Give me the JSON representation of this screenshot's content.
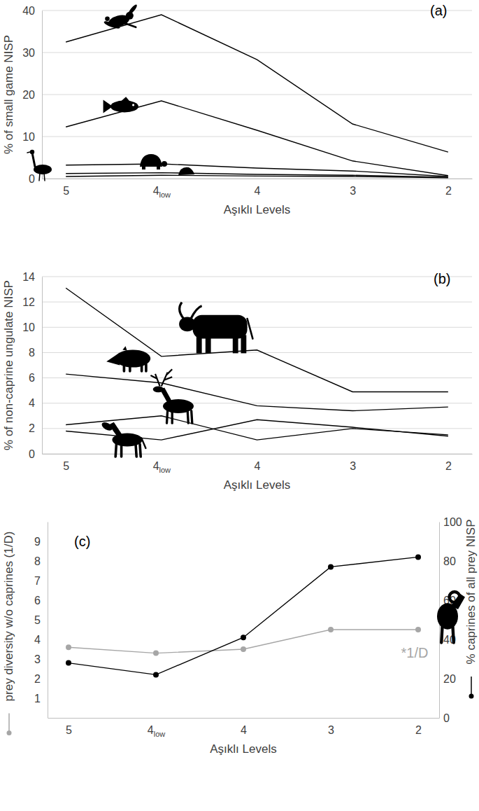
{
  "chart_data": [
    {
      "type": "line",
      "panel_label": "(a)",
      "x_label": "Aşıklı Levels",
      "y_label": "% of small game NISP",
      "categories": [
        "5",
        "4low",
        "4",
        "3",
        "2"
      ],
      "ylim": [
        0,
        40
      ],
      "yticks": [
        0,
        10,
        20,
        30,
        40
      ],
      "grid": true,
      "series": [
        {
          "color": "#000000",
          "values": [
            32.5,
            39,
            28.3,
            13,
            6.3
          ]
        },
        {
          "color": "#000000",
          "values": [
            12.3,
            18.5,
            11.5,
            4.2,
            0.7
          ]
        },
        {
          "color": "#000000",
          "values": [
            3.2,
            3.5,
            2.5,
            1.8,
            0.5
          ]
        },
        {
          "color": "#000000",
          "values": [
            1.2,
            1.4,
            1.0,
            0.8,
            0.3
          ]
        },
        {
          "color": "#000000",
          "values": [
            0.5,
            0.8,
            0.6,
            0.5,
            0.2
          ]
        }
      ]
    },
    {
      "type": "line",
      "panel_label": "(b)",
      "x_label": "Aşıklı Levels",
      "y_label": "% of non-caprine ungulate NISP",
      "categories": [
        "5",
        "4low",
        "4",
        "3",
        "2"
      ],
      "ylim": [
        0,
        14
      ],
      "yticks": [
        0,
        2,
        4,
        6,
        8,
        10,
        12,
        14
      ],
      "grid": true,
      "series": [
        {
          "color": "#000000",
          "values": [
            13.1,
            7.7,
            8.2,
            4.9,
            4.9
          ]
        },
        {
          "color": "#000000",
          "values": [
            6.3,
            5.6,
            3.8,
            3.4,
            3.7
          ]
        },
        {
          "color": "#000000",
          "values": [
            2.3,
            3.0,
            1.1,
            2.0,
            1.5
          ]
        },
        {
          "color": "#000000",
          "values": [
            1.8,
            1.1,
            2.7,
            2.1,
            1.4
          ]
        }
      ]
    },
    {
      "type": "line",
      "panel_label": "(c)",
      "x_label": "Aşıklı Levels",
      "y_label": "prey diversity w/o caprines (1/D)",
      "y2_label": "% caprines of all prey NISP",
      "annotation": "*1/D",
      "categories": [
        "5",
        "4low",
        "4",
        "3",
        "2"
      ],
      "ylim": [
        0,
        10
      ],
      "yticks": [
        1,
        2,
        3,
        4,
        5,
        6,
        7,
        8,
        9
      ],
      "y2lim": [
        0,
        100
      ],
      "y2ticks": [
        0,
        20,
        40,
        60,
        80,
        100
      ],
      "grid": false,
      "series": [
        {
          "color": "#a6a6a6",
          "marker": "circle",
          "values": [
            3.6,
            3.3,
            3.5,
            4.5,
            4.5
          ]
        },
        {
          "color": "#000000",
          "marker": "circle",
          "axis": "y2",
          "values": [
            28,
            22,
            41,
            77,
            82
          ]
        }
      ]
    }
  ]
}
